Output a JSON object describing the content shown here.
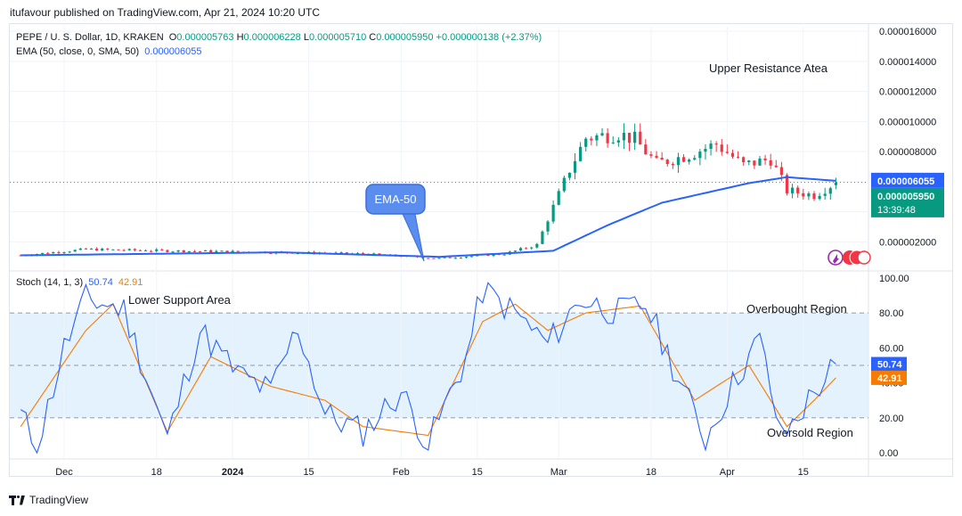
{
  "publisher": "itufavour published on TradingView.com, Apr 21, 2024 10:20 UTC",
  "legend": {
    "symbol": "PEPE / U. S. Dollar, 1D, KRAKEN",
    "o_label": "O",
    "o_value": "0.000005763",
    "h_label": "H",
    "h_value": "0.000006228",
    "l_label": "L",
    "l_value": "0.000005710",
    "c_label": "C",
    "c_value": "0.000005950",
    "change": "+0.000000138 (+2.37%)",
    "ema_label": "EMA (50, close, 0, SMA, 50)",
    "ema_value": "0.000006055",
    "stoch_label": "Stoch (14, 1, 3)",
    "stoch_k": "50.74",
    "stoch_d": "42.91"
  },
  "annotations": {
    "upper": "Upper Resistance Atea",
    "lower": "Lower Support Area",
    "overbought": "Overbought Region",
    "oversold": "Oversold Region",
    "ema_callout": "EMA-50"
  },
  "price_badges": {
    "ema": "0.000006055",
    "close": "0.000005950",
    "countdown": "13:39:48"
  },
  "stoch_badges": {
    "k": "50.74",
    "d": "42.91"
  },
  "branding": "TradingView",
  "colors": {
    "up": "#089981",
    "down": "#f23645",
    "ema": "#2962ff",
    "stoch_k": "#2962ff",
    "stoch_d": "#f57c00",
    "band": "#e3f2fd"
  },
  "chart_data": [
    {
      "type": "candlestick",
      "title": "PEPE / U. S. Dollar, 1D, KRAKEN",
      "x_ticks": [
        "Dec",
        "18",
        "2024",
        "15",
        "Feb",
        "15",
        "Mar",
        "18",
        "Apr",
        "15"
      ],
      "y_ticks": [
        "0.000002000",
        "0.000004000",
        "0.000006000",
        "0.000008000",
        "0.000010000",
        "0.000012000",
        "0.000014000",
        "0.000016000"
      ],
      "y_tick_values": [
        2e-06,
        4e-06,
        6e-06,
        8e-06,
        1e-05,
        1.2e-05,
        1.4e-05,
        1.6e-05
      ],
      "ylim": [
        3e-07,
        1.63e-05
      ],
      "grid": true,
      "close_key_points": [
        {
          "date": "2023-11-23",
          "close": 1.1e-06
        },
        {
          "date": "2023-12-05",
          "close": 1.5e-06
        },
        {
          "date": "2023-12-20",
          "close": 1.4e-06
        },
        {
          "date": "2024-01-10",
          "close": 1.3e-06
        },
        {
          "date": "2024-01-25",
          "close": 1.2e-06
        },
        {
          "date": "2024-02-08",
          "close": 9e-07
        },
        {
          "date": "2024-02-20",
          "close": 1.2e-06
        },
        {
          "date": "2024-02-26",
          "close": 1.8e-06
        },
        {
          "date": "2024-02-28",
          "close": 3.5e-06
        },
        {
          "date": "2024-03-03",
          "close": 6.8e-06
        },
        {
          "date": "2024-03-06",
          "close": 8.9e-06
        },
        {
          "date": "2024-03-12",
          "close": 9.2e-06
        },
        {
          "date": "2024-03-15",
          "close": 8.8e-06
        },
        {
          "date": "2024-03-19",
          "close": 7.2e-06
        },
        {
          "date": "2024-03-25",
          "close": 7.8e-06
        },
        {
          "date": "2024-03-30",
          "close": 8.5e-06
        },
        {
          "date": "2024-04-04",
          "close": 7.1e-06
        },
        {
          "date": "2024-04-09",
          "close": 7.5e-06
        },
        {
          "date": "2024-04-12",
          "close": 5.4e-06
        },
        {
          "date": "2024-04-17",
          "close": 5.1e-06
        },
        {
          "date": "2024-04-21",
          "close": 5.95e-06
        }
      ],
      "ema50_key_points": [
        {
          "date": "2023-11-23",
          "value": 1.1e-06
        },
        {
          "date": "2024-01-10",
          "value": 1.3e-06
        },
        {
          "date": "2024-02-08",
          "value": 1e-06
        },
        {
          "date": "2024-02-29",
          "value": 1.4e-06
        },
        {
          "date": "2024-03-10",
          "value": 3.1e-06
        },
        {
          "date": "2024-03-20",
          "value": 4.6e-06
        },
        {
          "date": "2024-04-05",
          "value": 5.9e-06
        },
        {
          "date": "2024-04-12",
          "value": 6.3e-06
        },
        {
          "date": "2024-04-21",
          "value": 6.055e-06
        }
      ]
    },
    {
      "type": "line",
      "title": "Stoch (14, 1, 3)",
      "y_ticks": [
        "0.00",
        "20.00",
        "40.00",
        "60.00",
        "80.00",
        "100.00"
      ],
      "y_tick_values": [
        0,
        20,
        40,
        60,
        80,
        100
      ],
      "ylim": [
        -3,
        103
      ],
      "levels": [
        80,
        50,
        20
      ],
      "series": [
        {
          "name": "%K",
          "color": "#2962ff",
          "key_points": [
            {
              "date": "2023-11-23",
              "value": 22
            },
            {
              "date": "2023-11-26",
              "value": 3
            },
            {
              "date": "2023-12-01",
              "value": 60
            },
            {
              "date": "2023-12-05",
              "value": 88
            },
            {
              "date": "2023-12-12",
              "value": 82
            },
            {
              "date": "2023-12-20",
              "value": 8
            },
            {
              "date": "2023-12-26",
              "value": 70
            },
            {
              "date": "2024-01-02",
              "value": 45
            },
            {
              "date": "2024-01-08",
              "value": 35
            },
            {
              "date": "2024-01-13",
              "value": 72
            },
            {
              "date": "2024-01-18",
              "value": 22
            },
            {
              "date": "2024-01-25",
              "value": 12
            },
            {
              "date": "2024-02-01",
              "value": 35
            },
            {
              "date": "2024-02-06",
              "value": 5
            },
            {
              "date": "2024-02-13",
              "value": 55
            },
            {
              "date": "2024-02-16",
              "value": 93
            },
            {
              "date": "2024-02-22",
              "value": 80
            },
            {
              "date": "2024-02-28",
              "value": 62
            },
            {
              "date": "2024-03-05",
              "value": 88
            },
            {
              "date": "2024-03-12",
              "value": 80
            },
            {
              "date": "2024-03-17",
              "value": 85
            },
            {
              "date": "2024-03-22",
              "value": 50
            },
            {
              "date": "2024-03-28",
              "value": 8
            },
            {
              "date": "2024-04-03",
              "value": 45
            },
            {
              "date": "2024-04-07",
              "value": 65
            },
            {
              "date": "2024-04-11",
              "value": 8
            },
            {
              "date": "2024-04-16",
              "value": 30
            },
            {
              "date": "2024-04-21",
              "value": 50.74
            }
          ]
        },
        {
          "name": "%D",
          "color": "#f57c00",
          "key_points": [
            {
              "date": "2023-11-23",
              "value": 15
            },
            {
              "date": "2023-12-05",
              "value": 70
            },
            {
              "date": "2023-12-10",
              "value": 85
            },
            {
              "date": "2023-12-20",
              "value": 12
            },
            {
              "date": "2023-12-28",
              "value": 55
            },
            {
              "date": "2024-01-08",
              "value": 38
            },
            {
              "date": "2024-01-18",
              "value": 30
            },
            {
              "date": "2024-01-25",
              "value": 15
            },
            {
              "date": "2024-02-06",
              "value": 10
            },
            {
              "date": "2024-02-16",
              "value": 75
            },
            {
              "date": "2024-02-22",
              "value": 85
            },
            {
              "date": "2024-02-28",
              "value": 70
            },
            {
              "date": "2024-03-06",
              "value": 80
            },
            {
              "date": "2024-03-16",
              "value": 84
            },
            {
              "date": "2024-03-26",
              "value": 30
            },
            {
              "date": "2024-04-05",
              "value": 50
            },
            {
              "date": "2024-04-12",
              "value": 15
            },
            {
              "date": "2024-04-17",
              "value": 30
            },
            {
              "date": "2024-04-21",
              "value": 42.91
            }
          ]
        }
      ]
    }
  ]
}
